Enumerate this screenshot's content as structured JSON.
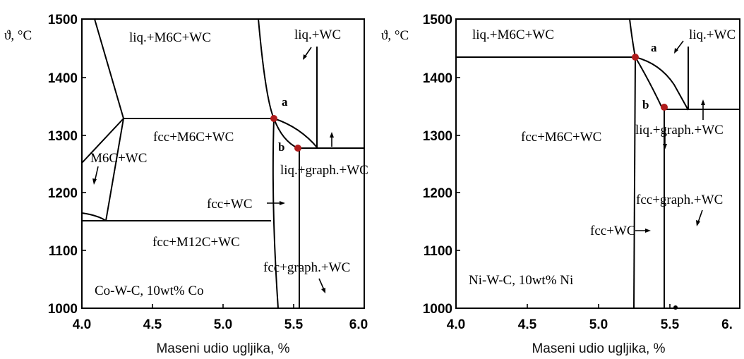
{
  "diagrams": [
    {
      "ylabel": "ϑ, °C",
      "xlabel": "Maseni udio ugljika, %",
      "xticks": [
        "4.0",
        "4.5",
        "5.0",
        "5.5",
        "6.0"
      ],
      "yticks": [
        "1500",
        "1400",
        "1300",
        "1200",
        "1100",
        "1000"
      ],
      "regions": [
        "liq.+M6C+WC",
        "liq.+WC",
        "fcc+M6C+WC",
        "M6C+WC",
        "liq.+graph.+WC",
        "fcc+WC",
        "fcc+M12C+WC",
        "fcc+graph.+WC"
      ],
      "system_label": "Co-W-C, 10wt% Co",
      "points": [
        "a",
        "b"
      ]
    },
    {
      "ylabel": "ϑ, °C",
      "xlabel": "Maseni udio ugljika, %",
      "xticks": [
        "4.0",
        "4.5",
        "5.0",
        "5.5",
        "6."
      ],
      "yticks": [
        "1500",
        "1400",
        "1300",
        "1200",
        "1100",
        "1000"
      ],
      "regions": [
        "liq.+M6C+WC",
        "liq.+WC",
        "liq.+graph.+WC",
        "fcc+M6C+WC",
        "fcc+graph.+WC",
        "fcc+WC"
      ],
      "system_label": "Ni-W-C, 10wt% Ni",
      "points": [
        "a",
        "b"
      ]
    }
  ],
  "colors": {
    "point": "#b01c1c",
    "line": "#000000"
  }
}
